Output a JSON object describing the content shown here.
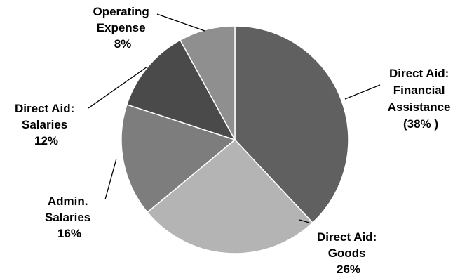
{
  "chart_data": {
    "type": "pie",
    "title": "",
    "slices": [
      {
        "lines": [
          "Direct Aid:",
          "Financial",
          "Assistance",
          "(38% )"
        ],
        "value": 38,
        "color": "#606060"
      },
      {
        "lines": [
          "Direct Aid:",
          "Goods",
          "26%"
        ],
        "value": 26,
        "color": "#b4b4b4"
      },
      {
        "lines": [
          "Admin.",
          "Salaries",
          "16%"
        ],
        "value": 16,
        "color": "#7d7d7d"
      },
      {
        "lines": [
          "Direct Aid:",
          "Salaries",
          "12%"
        ],
        "value": 12,
        "color": "#4a4a4a"
      },
      {
        "lines": [
          "Operating",
          "Expense",
          "8%"
        ],
        "value": 8,
        "color": "#8f8f8f"
      }
    ],
    "legend": "none",
    "labels": "outside with leader lines"
  }
}
